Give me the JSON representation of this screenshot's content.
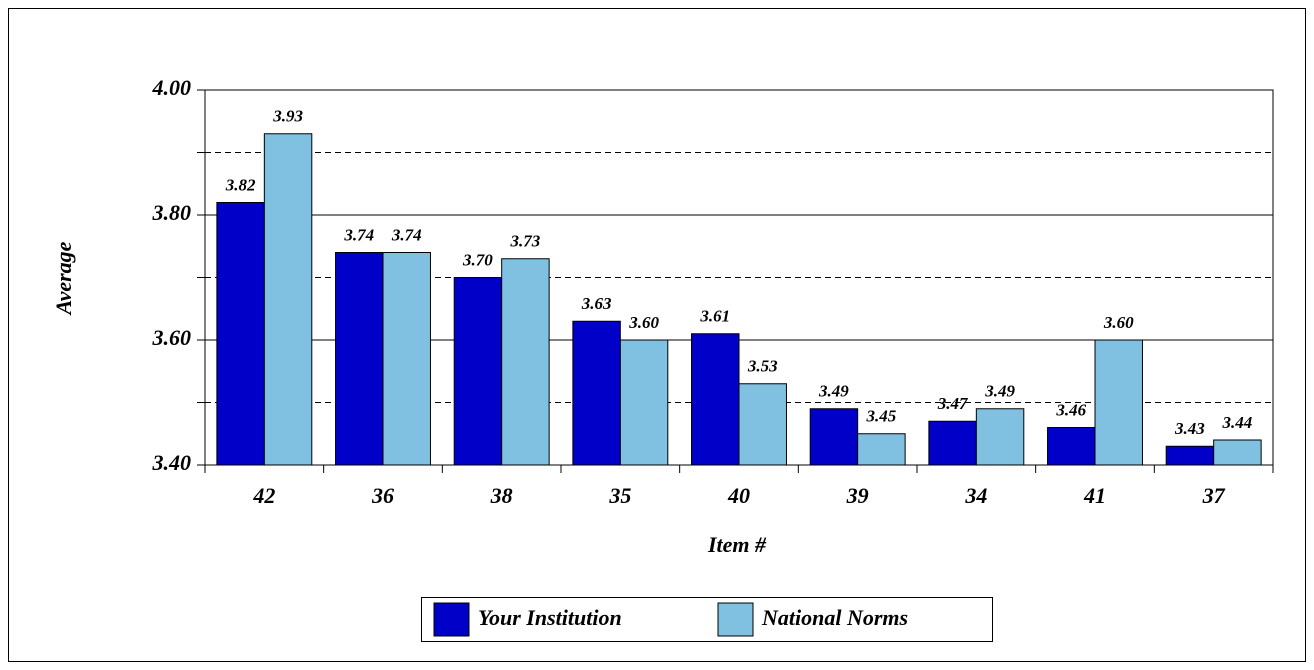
{
  "chart_data": {
    "type": "bar",
    "xlabel": "Item #",
    "ylabel": "Average",
    "categories": [
      "42",
      "36",
      "38",
      "35",
      "40",
      "39",
      "34",
      "41",
      "37"
    ],
    "series": [
      {
        "name": "Your Institution",
        "color": "#0000c8",
        "values": [
          3.82,
          3.74,
          3.7,
          3.63,
          3.61,
          3.49,
          3.47,
          3.46,
          3.43
        ],
        "value_labels": [
          "3.82",
          "3.74",
          "3.70",
          "3.63",
          "3.61",
          "3.49",
          "3.47",
          "3.46",
          "3.43"
        ]
      },
      {
        "name": "National Norms",
        "color": "#80c0e0",
        "values": [
          3.93,
          3.74,
          3.73,
          3.6,
          3.53,
          3.45,
          3.49,
          3.6,
          3.44
        ],
        "value_labels": [
          "3.93",
          "3.74",
          "3.73",
          "3.60",
          "3.53",
          "3.45",
          "3.49",
          "3.60",
          "3.44"
        ]
      }
    ],
    "ylim": [
      3.4,
      4.0
    ],
    "yticks": [
      {
        "value": 3.4,
        "label": "3.40"
      },
      {
        "value": 3.6,
        "label": "3.60"
      },
      {
        "value": 3.8,
        "label": "3.80"
      },
      {
        "value": 4.0,
        "label": "4.00"
      }
    ],
    "minor_yticks": [
      3.5,
      3.7,
      3.9
    ],
    "grid": true,
    "legend": "bottom"
  }
}
